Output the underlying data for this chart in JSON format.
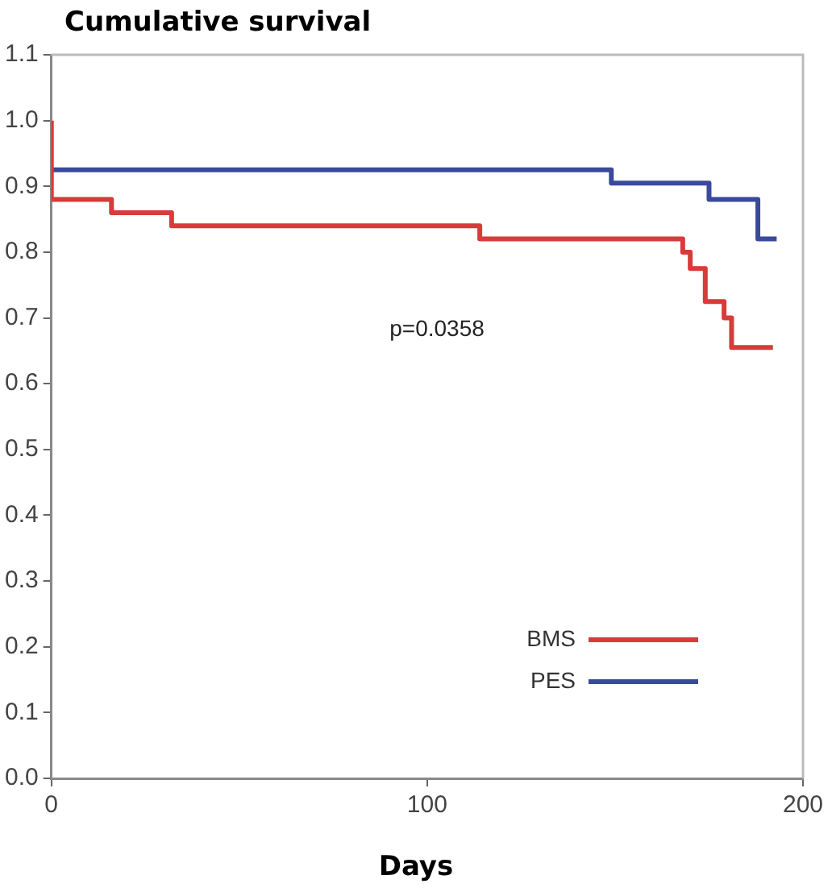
{
  "chart_data": {
    "type": "step",
    "title": "Cumulative survival",
    "xlabel": "Days",
    "annotations": [
      "p=0.0358"
    ],
    "series": [
      {
        "name": "BMS",
        "color": "#d93a3a",
        "x": [
          0,
          0,
          16,
          32,
          114,
          168,
          170,
          174,
          179,
          181,
          192
        ],
        "values": [
          1.0,
          0.88,
          0.86,
          0.84,
          0.82,
          0.8,
          0.775,
          0.725,
          0.7,
          0.655,
          0.655
        ]
      },
      {
        "name": "PES",
        "color": "#3a4a9a",
        "x": [
          0,
          149,
          175,
          188,
          193
        ],
        "values": [
          0.925,
          0.905,
          0.88,
          0.82,
          0.82
        ]
      }
    ],
    "xlim": [
      0,
      200
    ],
    "xticks": [
      0,
      100,
      200
    ],
    "ylim": [
      0,
      1.1
    ],
    "yticks": [
      {
        "value": 0,
        "label": "0.0"
      },
      0.1,
      0.2,
      0.3,
      0.4,
      0.5,
      0.6,
      0.7,
      0.8,
      0.9,
      {
        "value": 1.0,
        "label": "1.0"
      },
      1.1
    ],
    "grid": false,
    "legend": "bottom right"
  }
}
